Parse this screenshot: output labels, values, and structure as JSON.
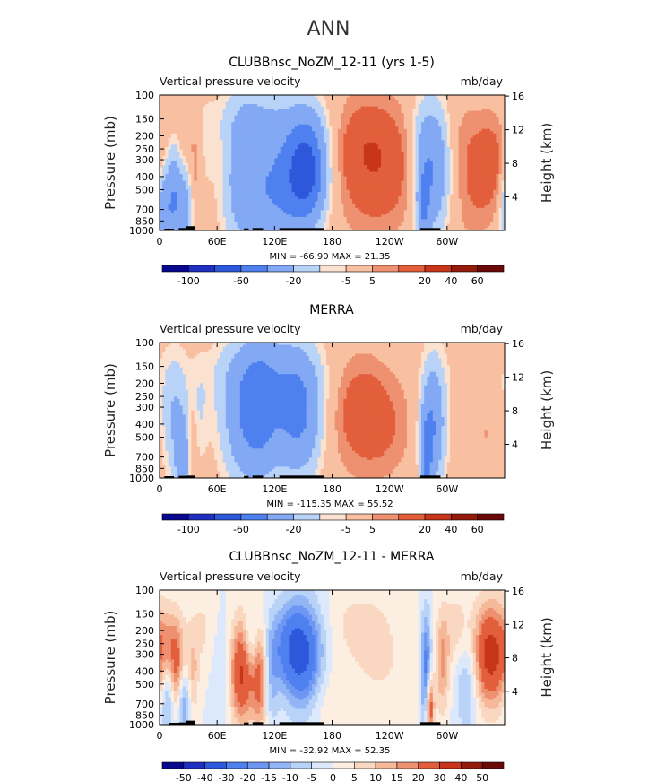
{
  "page": {
    "title": "ANN"
  },
  "colors": {
    "plot_border": "#000000",
    "land": "#000000",
    "text": "#000000"
  },
  "palettes": {
    "abs": [
      "#08088f",
      "#1f2fbf",
      "#2e58dc",
      "#4f80f0",
      "#83a9f4",
      "#b8d2f8",
      "#fbe2d0",
      "#f8c0a0",
      "#ee9170",
      "#e35f3c",
      "#c7351b",
      "#941a0b",
      "#6b0909"
    ],
    "diff": [
      "#08088f",
      "#1f2fbf",
      "#2e58dc",
      "#4f80f0",
      "#6d97f2",
      "#92b5f5",
      "#b8d2f8",
      "#dce8fb",
      "#fdeee2",
      "#f9d7c0",
      "#f5b898",
      "#ee9170",
      "#e35f3c",
      "#c7351b",
      "#941a0b",
      "#6b0909"
    ]
  },
  "chart_data": [
    {
      "type": "heatmap",
      "title": "CLUBBnsc_NoZM_12-11 (yrs 1-5)",
      "left_label": "Vertical pressure velocity",
      "right_label": "mb/day",
      "ylabel": "Pressure (mb)",
      "ylabel_right": "Height (km)",
      "x_ticks": [
        "0",
        "60E",
        "120E",
        "180",
        "120W",
        "60W"
      ],
      "x_tick_lon": [
        0,
        60,
        120,
        180,
        240,
        300
      ],
      "xlim": [
        0,
        360
      ],
      "y_ticks": [
        "100",
        "150",
        "200",
        "250",
        "300",
        "400",
        "500",
        "700",
        "850",
        "1000"
      ],
      "y_tick_p": [
        100,
        150,
        200,
        250,
        300,
        400,
        500,
        700,
        850,
        1000
      ],
      "ylim": [
        100,
        1000
      ],
      "y_scale": "log",
      "height_ticks": [
        "16",
        "12",
        "8",
        "4"
      ],
      "height_km": [
        16,
        12,
        8,
        4
      ],
      "stats": "MIN = -66.90   MAX =  21.35",
      "colorbar_labels": [
        "-100",
        "-60",
        "-20",
        "-5",
        "5",
        "20",
        "40",
        "60"
      ],
      "colorbar_label_edges": [
        1,
        3,
        5,
        7,
        8,
        10,
        11,
        12
      ],
      "palette": "abs",
      "levels": [
        -120,
        -100,
        -80,
        -60,
        -40,
        -20,
        -10,
        -5,
        5,
        10,
        20,
        40,
        60,
        80
      ],
      "features": [
        {
          "lon": 5,
          "p": 750,
          "dlon": 6,
          "dp": 0.55,
          "amp": -35
        },
        {
          "lon": 15,
          "p": 500,
          "dlon": 5,
          "dp": 0.6,
          "amp": -25
        },
        {
          "lon": 25,
          "p": 700,
          "dlon": 7,
          "dp": 0.5,
          "amp": -30
        },
        {
          "lon": 38,
          "p": 400,
          "dlon": 5,
          "dp": 0.6,
          "amp": 12
        },
        {
          "lon": 45,
          "p": 250,
          "dlon": 8,
          "dp": 0.6,
          "amp": -8
        },
        {
          "lon": 30,
          "p": 180,
          "dlon": 15,
          "dp": 0.4,
          "amp": 6
        },
        {
          "lon": 85,
          "p": 400,
          "dlon": 14,
          "dp": 0.9,
          "amp": -22
        },
        {
          "lon": 100,
          "p": 250,
          "dlon": 15,
          "dp": 0.7,
          "amp": -12
        },
        {
          "lon": 130,
          "p": 350,
          "dlon": 20,
          "dp": 0.7,
          "amp": -30
        },
        {
          "lon": 155,
          "p": 350,
          "dlon": 14,
          "dp": 0.6,
          "amp": -60
        },
        {
          "lon": 120,
          "p": 700,
          "dlon": 25,
          "dp": 0.5,
          "amp": -18
        },
        {
          "lon": 110,
          "p": 150,
          "dlon": 60,
          "dp": 0.35,
          "amp": -7
        },
        {
          "lon": 225,
          "p": 350,
          "dlon": 30,
          "dp": 0.75,
          "amp": 18
        },
        {
          "lon": 210,
          "p": 180,
          "dlon": 25,
          "dp": 0.5,
          "amp": 7
        },
        {
          "lon": 285,
          "p": 350,
          "dlon": 12,
          "dp": 0.75,
          "amp": -40
        },
        {
          "lon": 275,
          "p": 700,
          "dlon": 5,
          "dp": 0.5,
          "amp": -30
        },
        {
          "lon": 272,
          "p": 200,
          "dlon": 8,
          "dp": 0.5,
          "amp": -8
        },
        {
          "lon": 345,
          "p": 300,
          "dlon": 12,
          "dp": 0.6,
          "amp": 14
        },
        {
          "lon": 325,
          "p": 550,
          "dlon": 15,
          "dp": 0.6,
          "amp": 8
        },
        {
          "lon": 318,
          "p": 200,
          "dlon": 12,
          "dp": 0.5,
          "amp": 6
        }
      ],
      "land": [
        [
          5,
          15,
          970
        ],
        [
          20,
          28,
          960
        ],
        [
          28,
          37,
          930
        ],
        [
          88,
          93,
          965
        ],
        [
          97,
          108,
          960
        ],
        [
          125,
          172,
          960
        ],
        [
          272,
          293,
          960
        ]
      ]
    },
    {
      "type": "heatmap",
      "title": "MERRA",
      "left_label": "Vertical pressure velocity",
      "right_label": "mb/day",
      "ylabel": "Pressure (mb)",
      "ylabel_right": "Height (km)",
      "x_ticks": [
        "0",
        "60E",
        "120E",
        "180",
        "120W",
        "60W"
      ],
      "x_tick_lon": [
        0,
        60,
        120,
        180,
        240,
        300
      ],
      "xlim": [
        0,
        360
      ],
      "y_ticks": [
        "100",
        "150",
        "200",
        "250",
        "300",
        "400",
        "500",
        "700",
        "850",
        "1000"
      ],
      "y_tick_p": [
        100,
        150,
        200,
        250,
        300,
        400,
        500,
        700,
        850,
        1000
      ],
      "ylim": [
        100,
        1000
      ],
      "y_scale": "log",
      "height_ticks": [
        "16",
        "12",
        "8",
        "4"
      ],
      "height_km": [
        16,
        12,
        8,
        4
      ],
      "stats": "MIN = -115.35   MAX =  55.52",
      "colorbar_labels": [
        "-100",
        "-60",
        "-20",
        "-5",
        "5",
        "20",
        "40",
        "60"
      ],
      "colorbar_label_edges": [
        1,
        3,
        5,
        7,
        8,
        10,
        11,
        12
      ],
      "palette": "abs",
      "levels": [
        -120,
        -100,
        -80,
        -60,
        -40,
        -20,
        -10,
        -5,
        5,
        10,
        20,
        40,
        60,
        80
      ],
      "features": [
        {
          "lon": 15,
          "p": 350,
          "dlon": 10,
          "dp": 0.7,
          "amp": -20
        },
        {
          "lon": 25,
          "p": 750,
          "dlon": 6,
          "dp": 0.5,
          "amp": -30
        },
        {
          "lon": 33,
          "p": 650,
          "dlon": 4,
          "dp": 0.5,
          "amp": 15
        },
        {
          "lon": 42,
          "p": 350,
          "dlon": 6,
          "dp": 0.6,
          "amp": -8
        },
        {
          "lon": 90,
          "p": 350,
          "dlon": 18,
          "dp": 0.8,
          "amp": -35
        },
        {
          "lon": 105,
          "p": 300,
          "dlon": 12,
          "dp": 0.8,
          "amp": -20
        },
        {
          "lon": 130,
          "p": 300,
          "dlon": 18,
          "dp": 0.8,
          "amp": -25
        },
        {
          "lon": 150,
          "p": 350,
          "dlon": 15,
          "dp": 0.7,
          "amp": -30
        },
        {
          "lon": 110,
          "p": 170,
          "dlon": 50,
          "dp": 0.45,
          "amp": -10
        },
        {
          "lon": 220,
          "p": 400,
          "dlon": 28,
          "dp": 0.65,
          "amp": 15
        },
        {
          "lon": 205,
          "p": 200,
          "dlon": 20,
          "dp": 0.5,
          "amp": 6
        },
        {
          "lon": 285,
          "p": 400,
          "dlon": 9,
          "dp": 0.75,
          "amp": -40
        },
        {
          "lon": 278,
          "p": 750,
          "dlon": 4,
          "dp": 0.5,
          "amp": -35
        },
        {
          "lon": 340,
          "p": 400,
          "dlon": 15,
          "dp": 0.6,
          "amp": 6
        },
        {
          "lon": 330,
          "p": 170,
          "dlon": 20,
          "dp": 0.5,
          "amp": -6
        }
      ],
      "land": [
        [
          5,
          15,
          970
        ],
        [
          20,
          28,
          965
        ],
        [
          28,
          37,
          960
        ],
        [
          88,
          93,
          965
        ],
        [
          97,
          108,
          960
        ],
        [
          125,
          172,
          960
        ],
        [
          272,
          293,
          960
        ]
      ]
    },
    {
      "type": "heatmap",
      "title": "CLUBBnsc_NoZM_12-11 - MERRA",
      "left_label": "Vertical pressure velocity",
      "right_label": "mb/day",
      "ylabel": "Pressure (mb)",
      "ylabel_right": "Height (km)",
      "x_ticks": [
        "0",
        "60E",
        "120E",
        "180",
        "120W",
        "60W"
      ],
      "x_tick_lon": [
        0,
        60,
        120,
        180,
        240,
        300
      ],
      "xlim": [
        0,
        360
      ],
      "y_ticks": [
        "100",
        "150",
        "200",
        "250",
        "300",
        "400",
        "500",
        "700",
        "850",
        "1000"
      ],
      "y_tick_p": [
        100,
        150,
        200,
        250,
        300,
        400,
        500,
        700,
        850,
        1000
      ],
      "ylim": [
        100,
        1000
      ],
      "y_scale": "log",
      "height_ticks": [
        "16",
        "12",
        "8",
        "4"
      ],
      "height_km": [
        16,
        12,
        8,
        4
      ],
      "stats": "MIN = -32.92   MAX =  52.35",
      "colorbar_labels": [
        "-50",
        "-40",
        "-30",
        "-20",
        "-15",
        "-10",
        "-5",
        "0",
        "5",
        "10",
        "15",
        "20",
        "30",
        "40",
        "50"
      ],
      "colorbar_label_edges": [
        1,
        2,
        3,
        4,
        5,
        6,
        7,
        8,
        9,
        10,
        11,
        12,
        13,
        14,
        15
      ],
      "palette": "diff",
      "levels": [
        -60,
        -50,
        -40,
        -30,
        -20,
        -15,
        -10,
        -5,
        0,
        5,
        10,
        15,
        20,
        30,
        40,
        50,
        60
      ],
      "features": [
        {
          "lon": 12,
          "p": 280,
          "dlon": 10,
          "dp": 0.5,
          "amp": 18
        },
        {
          "lon": 8,
          "p": 600,
          "dlon": 5,
          "dp": 0.5,
          "amp": -15
        },
        {
          "lon": 18,
          "p": 450,
          "dlon": 4,
          "dp": 0.5,
          "amp": 12
        },
        {
          "lon": 25,
          "p": 700,
          "dlon": 5,
          "dp": 0.4,
          "amp": -15
        },
        {
          "lon": 35,
          "p": 450,
          "dlon": 4,
          "dp": 0.5,
          "amp": 10
        },
        {
          "lon": 45,
          "p": 200,
          "dlon": 10,
          "dp": 0.5,
          "amp": 6
        },
        {
          "lon": 70,
          "p": 380,
          "dlon": 10,
          "dp": 0.6,
          "amp": -8
        },
        {
          "lon": 85,
          "p": 400,
          "dlon": 9,
          "dp": 0.6,
          "amp": 35
        },
        {
          "lon": 105,
          "p": 450,
          "dlon": 6,
          "dp": 0.6,
          "amp": 25
        },
        {
          "lon": 95,
          "p": 250,
          "dlon": 6,
          "dp": 0.4,
          "amp": -12
        },
        {
          "lon": 115,
          "p": 450,
          "dlon": 6,
          "dp": 0.6,
          "amp": -12
        },
        {
          "lon": 150,
          "p": 350,
          "dlon": 15,
          "dp": 0.7,
          "amp": -30
        },
        {
          "lon": 135,
          "p": 250,
          "dlon": 15,
          "dp": 0.5,
          "amp": -15
        },
        {
          "lon": 160,
          "p": 650,
          "dlon": 20,
          "dp": 0.5,
          "amp": 8
        },
        {
          "lon": 230,
          "p": 400,
          "dlon": 30,
          "dp": 0.6,
          "amp": 5
        },
        {
          "lon": 210,
          "p": 170,
          "dlon": 25,
          "dp": 0.4,
          "amp": 6
        },
        {
          "lon": 278,
          "p": 400,
          "dlon": 4,
          "dp": 0.7,
          "amp": -25
        },
        {
          "lon": 282,
          "p": 750,
          "dlon": 3,
          "dp": 0.4,
          "amp": 30
        },
        {
          "lon": 295,
          "p": 350,
          "dlon": 5,
          "dp": 0.6,
          "amp": 15
        },
        {
          "lon": 320,
          "p": 500,
          "dlon": 8,
          "dp": 0.6,
          "amp": -12
        },
        {
          "lon": 345,
          "p": 300,
          "dlon": 12,
          "dp": 0.6,
          "amp": 35
        },
        {
          "lon": 310,
          "p": 200,
          "dlon": 10,
          "dp": 0.5,
          "amp": 8
        }
      ],
      "land": [
        [
          10,
          20,
          970
        ],
        [
          20,
          28,
          965
        ],
        [
          28,
          37,
          935
        ],
        [
          88,
          93,
          965
        ],
        [
          97,
          108,
          960
        ],
        [
          125,
          172,
          960
        ],
        [
          272,
          293,
          960
        ]
      ]
    }
  ]
}
